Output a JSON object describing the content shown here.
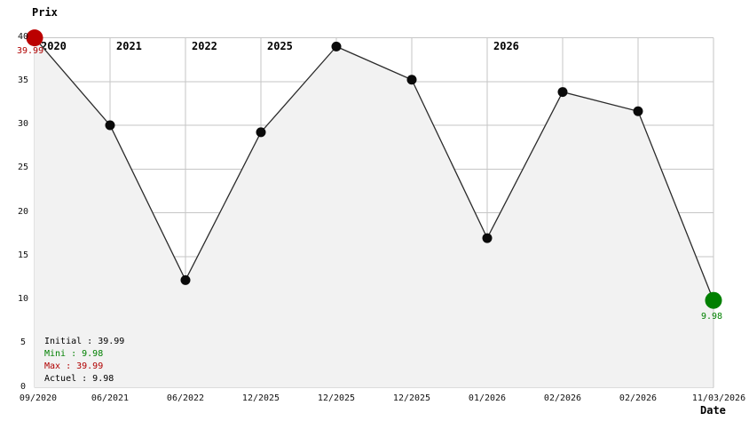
{
  "chart_data": {
    "type": "line",
    "title": "",
    "ylabel": "Prix",
    "xlabel": "Date",
    "ylim": [
      0,
      40
    ],
    "y_ticks": [
      40,
      35,
      30,
      25,
      20,
      15,
      10,
      5,
      0
    ],
    "x_tick_labels": [
      "09/2020",
      "06/2021",
      "06/2022",
      "12/2025",
      "12/2025",
      "12/2025",
      "01/2026",
      "02/2026",
      "02/2026",
      "11/03/2026"
    ],
    "year_markers": [
      {
        "label": "2020",
        "point_index": 0
      },
      {
        "label": "2021",
        "point_index": 1
      },
      {
        "label": "2022",
        "point_index": 2
      },
      {
        "label": "2025",
        "point_index": 3
      },
      {
        "label": "2026",
        "point_index": 6
      }
    ],
    "series": [
      {
        "name": "Prix",
        "values": [
          39.99,
          30.0,
          12.3,
          29.2,
          39.0,
          35.2,
          17.1,
          33.8,
          31.6,
          9.98
        ]
      }
    ],
    "first_point_label": "39.99",
    "last_point_label": "9.98",
    "grid": true,
    "legend_position": "bottom-left"
  },
  "legend": {
    "initial": "Initial : 39.99",
    "mini": "Mini : 9.98",
    "max": "Max : 39.99",
    "actuel": "Actuel : 9.98"
  },
  "colors": {
    "initial_marker": "#bb0000",
    "current_marker": "#008000",
    "max_text": "#b00000",
    "min_text": "#008000",
    "line": "#2b2b2b",
    "point": "#0a0a0a",
    "grid": "#c6c6c6",
    "fill": "#f2f2f2",
    "text": "#111111"
  }
}
